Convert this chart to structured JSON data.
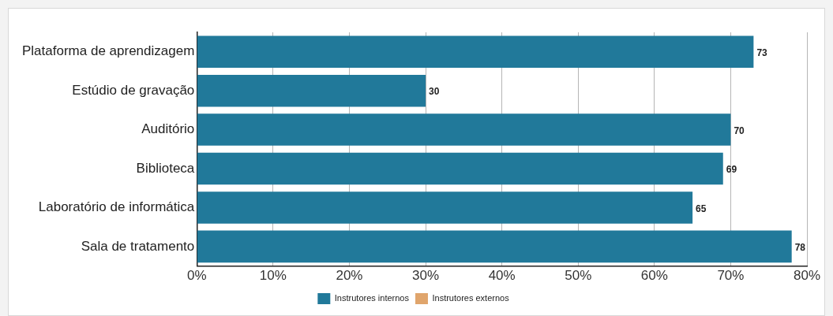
{
  "chart_data": {
    "type": "bar",
    "orientation": "horizontal",
    "categories": [
      "Plataforma de aprendizagem",
      "Estúdio de gravação",
      "Auditório",
      "Biblioteca",
      "Laboratório de informática",
      "Sala de tratamento"
    ],
    "series": [
      {
        "name": "Instrutores internos",
        "color": "#21799a",
        "values": [
          73,
          30,
          70,
          69,
          65,
          78
        ]
      },
      {
        "name": "Instrutores externos",
        "color": "#e0a56c",
        "values": [
          null,
          null,
          null,
          null,
          null,
          null
        ]
      }
    ],
    "xlim": [
      0,
      80
    ],
    "xticks": [
      {
        "value": 0,
        "label": "0%"
      },
      {
        "value": 10,
        "label": "10%"
      },
      {
        "value": 20,
        "label": "20%"
      },
      {
        "value": 30,
        "label": "30%"
      },
      {
        "value": 40,
        "label": "40%"
      },
      {
        "value": 50,
        "label": "50%"
      },
      {
        "value": 60,
        "label": "60%"
      },
      {
        "value": 70,
        "label": "70%"
      },
      {
        "value": 80,
        "label": "80%"
      }
    ],
    "grid": "x",
    "legend": "bottom",
    "data_labels": true
  }
}
